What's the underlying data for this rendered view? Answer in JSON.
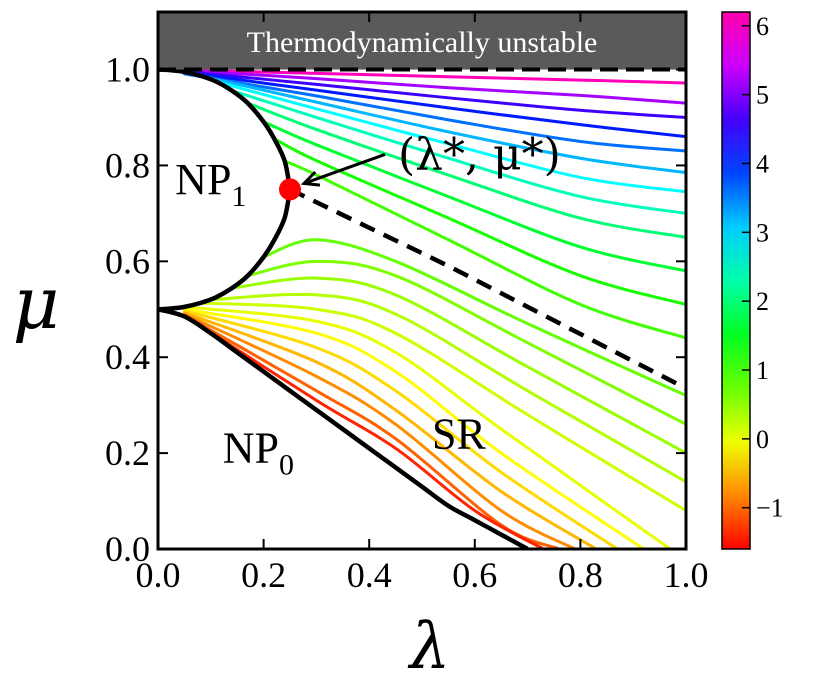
{
  "chart_data": {
    "type": "line",
    "title": "",
    "xlabel": "λ",
    "ylabel": "μ",
    "xlim": [
      0,
      1
    ],
    "ylim": [
      0,
      1.12
    ],
    "grid": false,
    "x_ticks": [
      "0.0",
      "0.2",
      "0.4",
      "0.6",
      "0.8",
      "1.0"
    ],
    "y_ticks": [
      "0.0",
      "0.2",
      "0.4",
      "0.6",
      "0.8",
      "1.0"
    ],
    "unstable_region": {
      "label": "Thermodynamically unstable",
      "mu_min": 1.0,
      "color": "#5a5a5a"
    },
    "region_labels": [
      {
        "id": "np1",
        "base": "NP",
        "sub": "1",
        "x": 0.1,
        "y": 0.74
      },
      {
        "id": "np0",
        "base": "NP",
        "sub": "0",
        "x": 0.19,
        "y": 0.18
      },
      {
        "id": "sr",
        "base": "SR",
        "sub": "",
        "x": 0.57,
        "y": 0.21
      }
    ],
    "critical_point": {
      "label": "(λ*, μ*)",
      "x": 0.25,
      "y": 0.75,
      "color": "#ff0000"
    },
    "phase_boundaries": [
      {
        "name": "np1-boundary",
        "style": "solid",
        "x": [
          0.0,
          0.02,
          0.05,
          0.08,
          0.11,
          0.14,
          0.17,
          0.2,
          0.22,
          0.24,
          0.25,
          0.25,
          0.24,
          0.22,
          0.2,
          0.17,
          0.14,
          0.11,
          0.08,
          0.05,
          0.02,
          0.0
        ],
        "y": [
          1.0,
          0.999,
          0.995,
          0.987,
          0.975,
          0.956,
          0.93,
          0.891,
          0.856,
          0.809,
          0.75,
          0.75,
          0.691,
          0.644,
          0.609,
          0.57,
          0.544,
          0.525,
          0.513,
          0.505,
          0.501,
          0.5
        ]
      },
      {
        "name": "np0-boundary",
        "style": "solid",
        "x": [
          0.0,
          0.05,
          0.1,
          0.15,
          0.2,
          0.25,
          0.3,
          0.35,
          0.4,
          0.45,
          0.5,
          0.55,
          0.6,
          0.65,
          0.7
        ],
        "y": [
          0.5,
          0.485,
          0.45,
          0.41,
          0.37,
          0.33,
          0.29,
          0.25,
          0.21,
          0.17,
          0.13,
          0.09,
          0.06,
          0.03,
          0.0
        ]
      },
      {
        "name": "first-order-line",
        "style": "dashed",
        "x": [
          0.25,
          0.4,
          0.55,
          0.7,
          0.85,
          1.0
        ],
        "y": [
          0.75,
          0.67,
          0.59,
          0.505,
          0.42,
          0.335
        ]
      }
    ],
    "colorbar": {
      "label": "",
      "min": -1.6,
      "max": 6.2,
      "ticks": [
        "−1",
        "0",
        "1",
        "2",
        "3",
        "4",
        "5",
        "6"
      ],
      "tick_values": [
        -1,
        0,
        1,
        2,
        3,
        4,
        5,
        6
      ],
      "colormap": "hsv"
    },
    "series": [
      {
        "value": 6.1,
        "x": [
          0.05,
          0.3,
          0.55,
          0.8,
          1.0
        ],
        "y": [
          0.999,
          0.992,
          0.985,
          0.978,
          0.972
        ]
      },
      {
        "value": 5.2,
        "x": [
          0.05,
          0.3,
          0.55,
          0.8,
          1.0
        ],
        "y": [
          0.998,
          0.981,
          0.962,
          0.946,
          0.93
        ]
      },
      {
        "value": 4.6,
        "x": [
          0.05,
          0.3,
          0.55,
          0.8,
          1.0
        ],
        "y": [
          0.996,
          0.969,
          0.941,
          0.915,
          0.9
        ]
      },
      {
        "value": 4.1,
        "x": [
          0.05,
          0.3,
          0.55,
          0.8,
          1.0
        ],
        "y": [
          0.994,
          0.957,
          0.92,
          0.885,
          0.86
        ]
      },
      {
        "value": 3.6,
        "x": [
          0.05,
          0.3,
          0.55,
          0.8,
          1.0
        ],
        "y": [
          0.991,
          0.945,
          0.895,
          0.85,
          0.83
        ]
      },
      {
        "value": 3.2,
        "x": [
          0.08,
          0.3,
          0.55,
          0.8,
          1.0
        ],
        "y": [
          0.987,
          0.932,
          0.87,
          0.815,
          0.785
        ]
      },
      {
        "value": 2.8,
        "x": [
          0.11,
          0.3,
          0.55,
          0.8,
          1.0
        ],
        "y": [
          0.975,
          0.918,
          0.845,
          0.775,
          0.745
        ]
      },
      {
        "value": 2.4,
        "x": [
          0.14,
          0.3,
          0.55,
          0.8,
          1.0
        ],
        "y": [
          0.956,
          0.9,
          0.815,
          0.735,
          0.7
        ]
      },
      {
        "value": 2.0,
        "x": [
          0.17,
          0.3,
          0.55,
          0.8,
          1.0
        ],
        "y": [
          0.93,
          0.875,
          0.78,
          0.69,
          0.65
        ]
      },
      {
        "value": 1.6,
        "x": [
          0.2,
          0.3,
          0.55,
          0.8,
          1.0
        ],
        "y": [
          0.891,
          0.843,
          0.735,
          0.63,
          0.58
        ]
      },
      {
        "value": 1.2,
        "x": [
          0.22,
          0.3,
          0.55,
          0.8,
          1.0
        ],
        "y": [
          0.856,
          0.81,
          0.69,
          0.57,
          0.51
        ]
      },
      {
        "value": 0.95,
        "x": [
          0.24,
          0.3,
          0.55,
          0.8,
          1.0
        ],
        "y": [
          0.809,
          0.78,
          0.645,
          0.51,
          0.44
        ]
      },
      {
        "value": 0.75,
        "x": [
          0.2,
          0.3,
          0.45,
          0.7,
          1.0
        ],
        "y": [
          0.609,
          0.645,
          0.6,
          0.47,
          0.32
        ]
      },
      {
        "value": 0.6,
        "x": [
          0.17,
          0.3,
          0.45,
          0.7,
          1.0
        ],
        "y": [
          0.57,
          0.6,
          0.57,
          0.43,
          0.26
        ]
      },
      {
        "value": 0.45,
        "x": [
          0.14,
          0.3,
          0.45,
          0.7,
          1.0
        ],
        "y": [
          0.544,
          0.565,
          0.53,
          0.38,
          0.2
        ]
      },
      {
        "value": 0.3,
        "x": [
          0.1,
          0.3,
          0.45,
          0.7,
          1.0
        ],
        "y": [
          0.52,
          0.53,
          0.49,
          0.33,
          0.14
        ]
      },
      {
        "value": 0.15,
        "x": [
          0.08,
          0.3,
          0.45,
          0.7,
          1.0
        ],
        "y": [
          0.513,
          0.5,
          0.45,
          0.28,
          0.08
        ]
      },
      {
        "value": 0.0,
        "x": [
          0.05,
          0.3,
          0.45,
          0.65,
          0.97
        ],
        "y": [
          0.505,
          0.475,
          0.41,
          0.25,
          0.0
        ]
      },
      {
        "value": -0.15,
        "x": [
          0.05,
          0.3,
          0.45,
          0.65,
          0.92
        ],
        "y": [
          0.5,
          0.45,
          0.37,
          0.2,
          0.0
        ]
      },
      {
        "value": -0.35,
        "x": [
          0.05,
          0.3,
          0.45,
          0.65,
          0.87
        ],
        "y": [
          0.497,
          0.42,
          0.33,
          0.16,
          0.0
        ]
      },
      {
        "value": -0.55,
        "x": [
          0.05,
          0.3,
          0.45,
          0.65,
          0.83
        ],
        "y": [
          0.493,
          0.39,
          0.29,
          0.12,
          0.0
        ]
      },
      {
        "value": -0.8,
        "x": [
          0.05,
          0.3,
          0.45,
          0.65,
          0.79
        ],
        "y": [
          0.49,
          0.36,
          0.26,
          0.08,
          0.0
        ]
      },
      {
        "value": -1.05,
        "x": [
          0.05,
          0.3,
          0.45,
          0.65,
          0.76
        ],
        "y": [
          0.488,
          0.33,
          0.23,
          0.05,
          0.0
        ]
      },
      {
        "value": -1.4,
        "x": [
          0.05,
          0.3,
          0.45,
          0.6,
          0.73
        ],
        "y": [
          0.487,
          0.31,
          0.21,
          0.08,
          0.0
        ]
      }
    ]
  }
}
